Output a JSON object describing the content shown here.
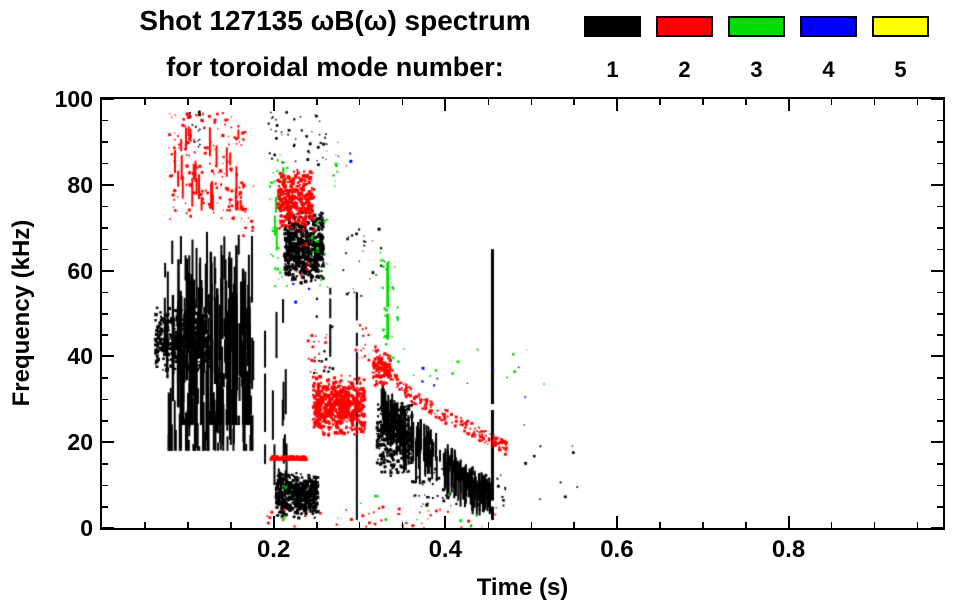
{
  "title": "Shot 127135 ωB(ω) spectrum",
  "subtitle": "for toroidal mode number:",
  "legend": {
    "modes": [
      {
        "mode": 1,
        "label": "1",
        "color": "#000000"
      },
      {
        "mode": 2,
        "label": "2",
        "color": "#ff0000"
      },
      {
        "mode": 3,
        "label": "3",
        "color": "#00dd00"
      },
      {
        "mode": 4,
        "label": "4",
        "color": "#0000ff"
      },
      {
        "mode": 5,
        "label": "5",
        "color": "#ffff00"
      }
    ]
  },
  "axes": {
    "x": {
      "label": "Time (s)",
      "range": [
        0,
        0.98
      ],
      "ticks": [
        {
          "v": 0.2,
          "label": "0.2"
        },
        {
          "v": 0.4,
          "label": "0.4"
        },
        {
          "v": 0.6,
          "label": "0.6"
        },
        {
          "v": 0.8,
          "label": "0.8"
        }
      ],
      "minor_step": 0.05
    },
    "y": {
      "label": "Frequency (kHz)",
      "range": [
        0,
        100
      ],
      "ticks": [
        {
          "v": 0,
          "label": "0"
        },
        {
          "v": 20,
          "label": "20"
        },
        {
          "v": 40,
          "label": "40"
        },
        {
          "v": 60,
          "label": "60"
        },
        {
          "v": 80,
          "label": "80"
        },
        {
          "v": 100,
          "label": "100"
        }
      ],
      "minor_step": 5
    }
  },
  "chart_data": {
    "type": "scatter",
    "subtype": "mode-spectrogram",
    "xlabel": "Time (s)",
    "ylabel": "Frequency (kHz)",
    "xlim": [
      0,
      0.98
    ],
    "ylim": [
      0,
      100
    ],
    "grid": false,
    "legend_position": "top-right",
    "clusters": [
      {
        "mode": 1,
        "type": "vstreaks",
        "t": [
          0.073,
          0.178
        ],
        "f": [
          18,
          70
        ],
        "n": 150,
        "len": [
          3,
          18
        ],
        "w": 2
      },
      {
        "mode": 1,
        "type": "vstreaks",
        "t": [
          0.082,
          0.172
        ],
        "f": [
          24,
          66
        ],
        "n": 90,
        "len": [
          10,
          32
        ],
        "w": 2.5
      },
      {
        "mode": 1,
        "type": "blob",
        "t": [
          0.062,
          0.126
        ],
        "f": [
          35,
          52
        ],
        "n": 520,
        "size": 2.6
      },
      {
        "mode": 1,
        "type": "blob",
        "t": [
          0.213,
          0.258
        ],
        "f": [
          57,
          74
        ],
        "n": 650,
        "size": 2.6
      },
      {
        "mode": 1,
        "type": "blob",
        "t": [
          0.203,
          0.252
        ],
        "f": [
          2,
          13
        ],
        "n": 520,
        "size": 2.6
      },
      {
        "mode": 1,
        "type": "blob",
        "t": [
          0.32,
          0.362
        ],
        "f": [
          12,
          30
        ],
        "n": 380,
        "size": 2.4
      },
      {
        "mode": 1,
        "type": "chirpband",
        "pts": [
          [
            0.325,
            30
          ],
          [
            0.35,
            26
          ],
          [
            0.38,
            21
          ],
          [
            0.41,
            16
          ],
          [
            0.435,
            12
          ],
          [
            0.455,
            10
          ]
        ],
        "n": 170,
        "len": [
          3,
          12
        ],
        "w": 2,
        "spread": [
          8,
          3
        ]
      },
      {
        "mode": 1,
        "type": "vline",
        "t": 0.297,
        "f": [
          2,
          55
        ],
        "w": 2
      },
      {
        "mode": 1,
        "type": "vline",
        "t": 0.455,
        "f": [
          2,
          66
        ],
        "w": 3
      },
      {
        "mode": 1,
        "type": "vline",
        "t": 0.19,
        "f": [
          15,
          46
        ],
        "w": 2
      },
      {
        "mode": 1,
        "type": "vline",
        "t": 0.266,
        "f": [
          40,
          56
        ],
        "w": 2
      },
      {
        "mode": 1,
        "type": "vstreaks",
        "t": [
          0.198,
          0.216
        ],
        "f": [
          10,
          55
        ],
        "n": 14,
        "len": [
          5,
          16
        ],
        "w": 2
      },
      {
        "mode": 1,
        "type": "speckle",
        "t": [
          0.19,
          0.262
        ],
        "f": [
          83,
          97
        ],
        "n": 45,
        "size": 2
      },
      {
        "mode": 1,
        "type": "speckle",
        "t": [
          0.1,
          0.118
        ],
        "f": [
          88,
          97
        ],
        "n": 16,
        "size": 2
      },
      {
        "mode": 1,
        "type": "speckle",
        "t": [
          0.49,
          0.556
        ],
        "f": [
          0,
          26
        ],
        "n": 10,
        "size": 2
      },
      {
        "mode": 1,
        "type": "speckle",
        "t": [
          0.28,
          0.33
        ],
        "f": [
          54,
          70
        ],
        "n": 26,
        "size": 2
      },
      {
        "mode": 1,
        "type": "speckle",
        "t": [
          0.242,
          0.272
        ],
        "f": [
          36,
          54
        ],
        "n": 22,
        "size": 2
      },
      {
        "mode": 1,
        "type": "speckle",
        "t": [
          0.36,
          0.47
        ],
        "f": [
          5,
          14
        ],
        "n": 70,
        "size": 2.2
      },
      {
        "mode": 3,
        "type": "vline",
        "t": 0.333,
        "f": [
          44,
          62
        ],
        "w": 3
      },
      {
        "mode": 3,
        "type": "speckle",
        "t": [
          0.324,
          0.346
        ],
        "f": [
          35,
          66
        ],
        "n": 28,
        "size": 2
      },
      {
        "mode": 3,
        "type": "speckle",
        "t": [
          0.195,
          0.216
        ],
        "f": [
          55,
          92
        ],
        "n": 30,
        "size": 2
      },
      {
        "mode": 3,
        "type": "vstreaks",
        "t": [
          0.199,
          0.212
        ],
        "f": [
          60,
          88
        ],
        "n": 7,
        "len": [
          3,
          8
        ],
        "w": 2
      },
      {
        "mode": 3,
        "type": "speckle",
        "t": [
          0.243,
          0.263
        ],
        "f": [
          55,
          72
        ],
        "n": 18,
        "size": 2
      },
      {
        "mode": 3,
        "type": "speckle",
        "t": [
          0.258,
          0.276
        ],
        "f": [
          78,
          90
        ],
        "n": 9,
        "size": 2
      },
      {
        "mode": 3,
        "type": "speckle",
        "t": [
          0.35,
          0.53
        ],
        "f": [
          32,
          42
        ],
        "n": 12,
        "size": 2
      },
      {
        "mode": 3,
        "type": "speckle",
        "t": [
          0.205,
          0.228
        ],
        "f": [
          1,
          10
        ],
        "n": 9,
        "size": 2
      },
      {
        "mode": 3,
        "type": "speckle",
        "t": [
          0.3,
          0.45
        ],
        "f": [
          0,
          8
        ],
        "n": 12,
        "size": 2
      },
      {
        "mode": 4,
        "type": "speckle",
        "t": [
          0.34,
          0.5
        ],
        "f": [
          27,
          40
        ],
        "n": 9,
        "size": 2
      },
      {
        "mode": 4,
        "type": "speckle",
        "t": [
          0.272,
          0.292
        ],
        "f": [
          82,
          88
        ],
        "n": 4,
        "size": 2
      },
      {
        "mode": 4,
        "type": "speckle",
        "t": [
          0.22,
          0.242
        ],
        "f": [
          52,
          58
        ],
        "n": 3,
        "size": 2
      },
      {
        "mode": 2,
        "type": "speckle",
        "t": [
          0.078,
          0.168
        ],
        "f": [
          72,
          97
        ],
        "n": 150,
        "size": 2.2
      },
      {
        "mode": 2,
        "type": "vstreaks",
        "t": [
          0.082,
          0.162
        ],
        "f": [
          74,
          94
        ],
        "n": 26,
        "len": [
          2,
          7
        ],
        "w": 2
      },
      {
        "mode": 2,
        "type": "blob",
        "t": [
          0.205,
          0.247
        ],
        "f": [
          69,
          84
        ],
        "n": 380,
        "size": 2.5
      },
      {
        "mode": 2,
        "type": "blob",
        "t": [
          0.246,
          0.306
        ],
        "f": [
          21,
          36
        ],
        "n": 600,
        "size": 2.6
      },
      {
        "mode": 2,
        "type": "hband",
        "t": [
          0.196,
          0.238
        ],
        "f": 16.3,
        "th": 3,
        "n": 80
      },
      {
        "mode": 2,
        "type": "chirp",
        "pts": [
          [
            0.318,
            41
          ],
          [
            0.335,
            36
          ],
          [
            0.36,
            31
          ],
          [
            0.39,
            27
          ],
          [
            0.42,
            24
          ],
          [
            0.45,
            21
          ],
          [
            0.472,
            18.5
          ]
        ],
        "n": 240,
        "jit": 1.6,
        "size": 2.2
      },
      {
        "mode": 2,
        "type": "blob",
        "t": [
          0.315,
          0.336
        ],
        "f": [
          33,
          41
        ],
        "n": 110,
        "size": 2.4
      },
      {
        "mode": 2,
        "type": "speckle",
        "t": [
          0.19,
          0.47
        ],
        "f": [
          0,
          5
        ],
        "n": 45,
        "size": 2
      },
      {
        "mode": 2,
        "type": "speckle",
        "t": [
          0.295,
          0.316
        ],
        "f": [
          38,
          48
        ],
        "n": 16,
        "size": 2
      },
      {
        "mode": 2,
        "type": "speckle",
        "t": [
          0.225,
          0.24
        ],
        "f": [
          58,
          70
        ],
        "n": 12,
        "size": 2
      },
      {
        "mode": 2,
        "type": "speckle",
        "t": [
          0.24,
          0.262
        ],
        "f": [
          36,
          46
        ],
        "n": 16,
        "size": 2
      },
      {
        "mode": 2,
        "type": "speckle",
        "t": [
          0.16,
          0.178
        ],
        "f": [
          68,
          80
        ],
        "n": 14,
        "size": 2
      }
    ]
  }
}
